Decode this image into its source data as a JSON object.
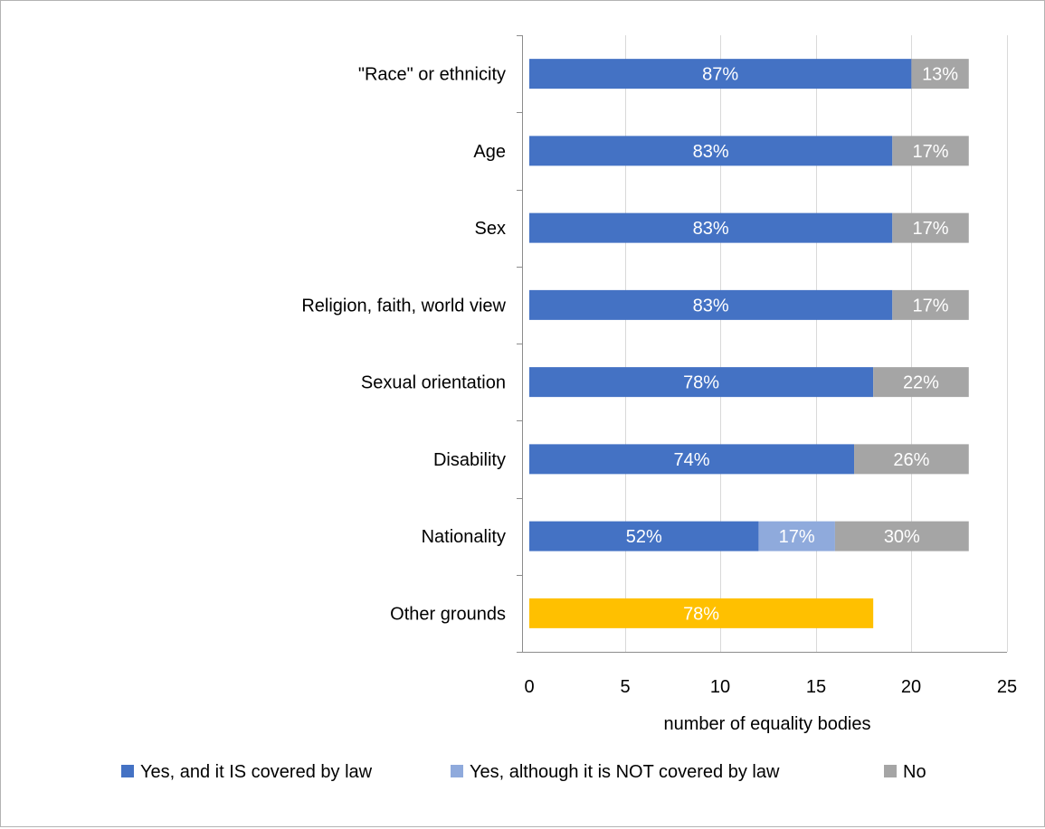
{
  "chart_data": {
    "type": "bar",
    "orientation": "horizontal",
    "stacked": true,
    "title": "",
    "xlabel": "number of equality bodies",
    "ylabel": "",
    "xlim": [
      0,
      25
    ],
    "x_ticks": [
      "0",
      "5",
      "10",
      "15",
      "20",
      "25"
    ],
    "grid": "vertical",
    "legend_position": "bottom",
    "categories": [
      "\"Race\" or ethnicity",
      "Age",
      "Sex",
      "Religion, faith, world view",
      "Sexual orientation",
      "Disability",
      "Nationality",
      "Other grounds"
    ],
    "series": [
      {
        "name": "Yes, and it IS covered by law",
        "color": "#4472C4",
        "values": [
          20,
          19,
          19,
          19,
          18,
          17,
          12,
          0
        ],
        "labels": [
          "87%",
          "83%",
          "83%",
          "83%",
          "78%",
          "74%",
          "52%",
          ""
        ]
      },
      {
        "name": "Yes, although it is NOT covered by law",
        "color": "#8FAADC",
        "values": [
          0,
          0,
          0,
          0,
          0,
          0,
          4,
          0
        ],
        "labels": [
          "",
          "",
          "",
          "",
          "",
          "",
          "17%",
          ""
        ]
      },
      {
        "name": "No",
        "color": "#A5A5A5",
        "values": [
          3,
          4,
          4,
          4,
          5,
          6,
          7,
          0
        ],
        "labels": [
          "13%",
          "17%",
          "17%",
          "17%",
          "22%",
          "26%",
          "30%",
          ""
        ]
      },
      {
        "color": "#FFC000",
        "values": [
          0,
          0,
          0,
          0,
          0,
          0,
          0,
          18
        ],
        "labels": [
          "",
          "",
          "",
          "",
          "",
          "",
          "",
          "78%"
        ]
      }
    ],
    "legend": [
      {
        "name": "Yes, and it IS covered by law",
        "color": "#4472C4"
      },
      {
        "name": "Yes, although it is NOT covered by law",
        "color": "#8FAADC"
      },
      {
        "name": "No",
        "color": "#A5A5A5"
      }
    ],
    "gridline_color": "#d9d9d9",
    "axis_color": "#8c8c8c"
  }
}
